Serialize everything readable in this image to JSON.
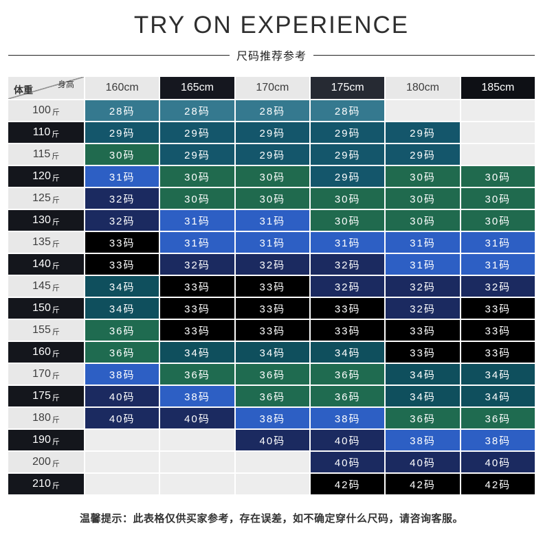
{
  "chart_data": {
    "type": "table",
    "title": "TRY ON EXPERIENCE",
    "subtitle": "尺码推荐参考",
    "corner": {
      "top_right": "身高",
      "bottom_left": "体重"
    },
    "columns": [
      "160cm",
      "165cm",
      "170cm",
      "175cm",
      "180cm",
      "185cm"
    ],
    "weight_unit": "斤",
    "rows": [
      {
        "weight": "100",
        "cells": [
          "28码",
          "28码",
          "28码",
          "28码",
          "",
          ""
        ]
      },
      {
        "weight": "110",
        "cells": [
          "29码",
          "29码",
          "29码",
          "29码",
          "29码",
          ""
        ]
      },
      {
        "weight": "115",
        "cells": [
          "30码",
          "29码",
          "29码",
          "29码",
          "29码",
          ""
        ]
      },
      {
        "weight": "120",
        "cells": [
          "31码",
          "30码",
          "30码",
          "29码",
          "30码",
          "30码"
        ]
      },
      {
        "weight": "125",
        "cells": [
          "32码",
          "30码",
          "30码",
          "30码",
          "30码",
          "30码"
        ]
      },
      {
        "weight": "130",
        "cells": [
          "32码",
          "31码",
          "31码",
          "30码",
          "30码",
          "30码"
        ]
      },
      {
        "weight": "135",
        "cells": [
          "33码",
          "31码",
          "31码",
          "31码",
          "31码",
          "31码"
        ]
      },
      {
        "weight": "140",
        "cells": [
          "33码",
          "32码",
          "32码",
          "32码",
          "31码",
          "31码"
        ]
      },
      {
        "weight": "145",
        "cells": [
          "34码",
          "33码",
          "33码",
          "32码",
          "32码",
          "32码"
        ]
      },
      {
        "weight": "150",
        "cells": [
          "34码",
          "33码",
          "33码",
          "33码",
          "32码",
          "33码"
        ]
      },
      {
        "weight": "155",
        "cells": [
          "36码",
          "33码",
          "33码",
          "33码",
          "33码",
          "33码"
        ]
      },
      {
        "weight": "160",
        "cells": [
          "36码",
          "34码",
          "34码",
          "34码",
          "33码",
          "33码"
        ]
      },
      {
        "weight": "170",
        "cells": [
          "38码",
          "36码",
          "36码",
          "36码",
          "34码",
          "34码"
        ]
      },
      {
        "weight": "175",
        "cells": [
          "40码",
          "38码",
          "36码",
          "36码",
          "34码",
          "34码"
        ]
      },
      {
        "weight": "180",
        "cells": [
          "40码",
          "40码",
          "38码",
          "38码",
          "36码",
          "36码"
        ]
      },
      {
        "weight": "190",
        "cells": [
          "",
          "",
          "40码",
          "40码",
          "38码",
          "38码"
        ]
      },
      {
        "weight": "200",
        "cells": [
          "",
          "",
          "",
          "40码",
          "40码",
          "40码"
        ]
      },
      {
        "weight": "210",
        "cells": [
          "",
          "",
          "",
          "42码",
          "42码",
          "42码"
        ]
      }
    ],
    "note": "温馨提示：此表格仅供买家参考，存在误差，如不确定穿什么尺码，请咨询客服。"
  },
  "colors": {
    "header_light": "#e8e8e8",
    "header_dark": [
      "#15171f",
      "#262a33",
      "#0e1015"
    ],
    "row_header_dark": "#14161c",
    "empty_cell": "#ededed",
    "sizes": {
      "28码": "#35798f",
      "29码": "#14566b",
      "30码": "#206a4e",
      "31码": "#2d5fc4",
      "32码": "#1b2a60",
      "33码": "#000000",
      "34码": "#0f4f5d",
      "36码": "#1f6b50",
      "38码": "#2d5fc4",
      "40码": "#1b2a60",
      "42码": "#000000"
    }
  }
}
